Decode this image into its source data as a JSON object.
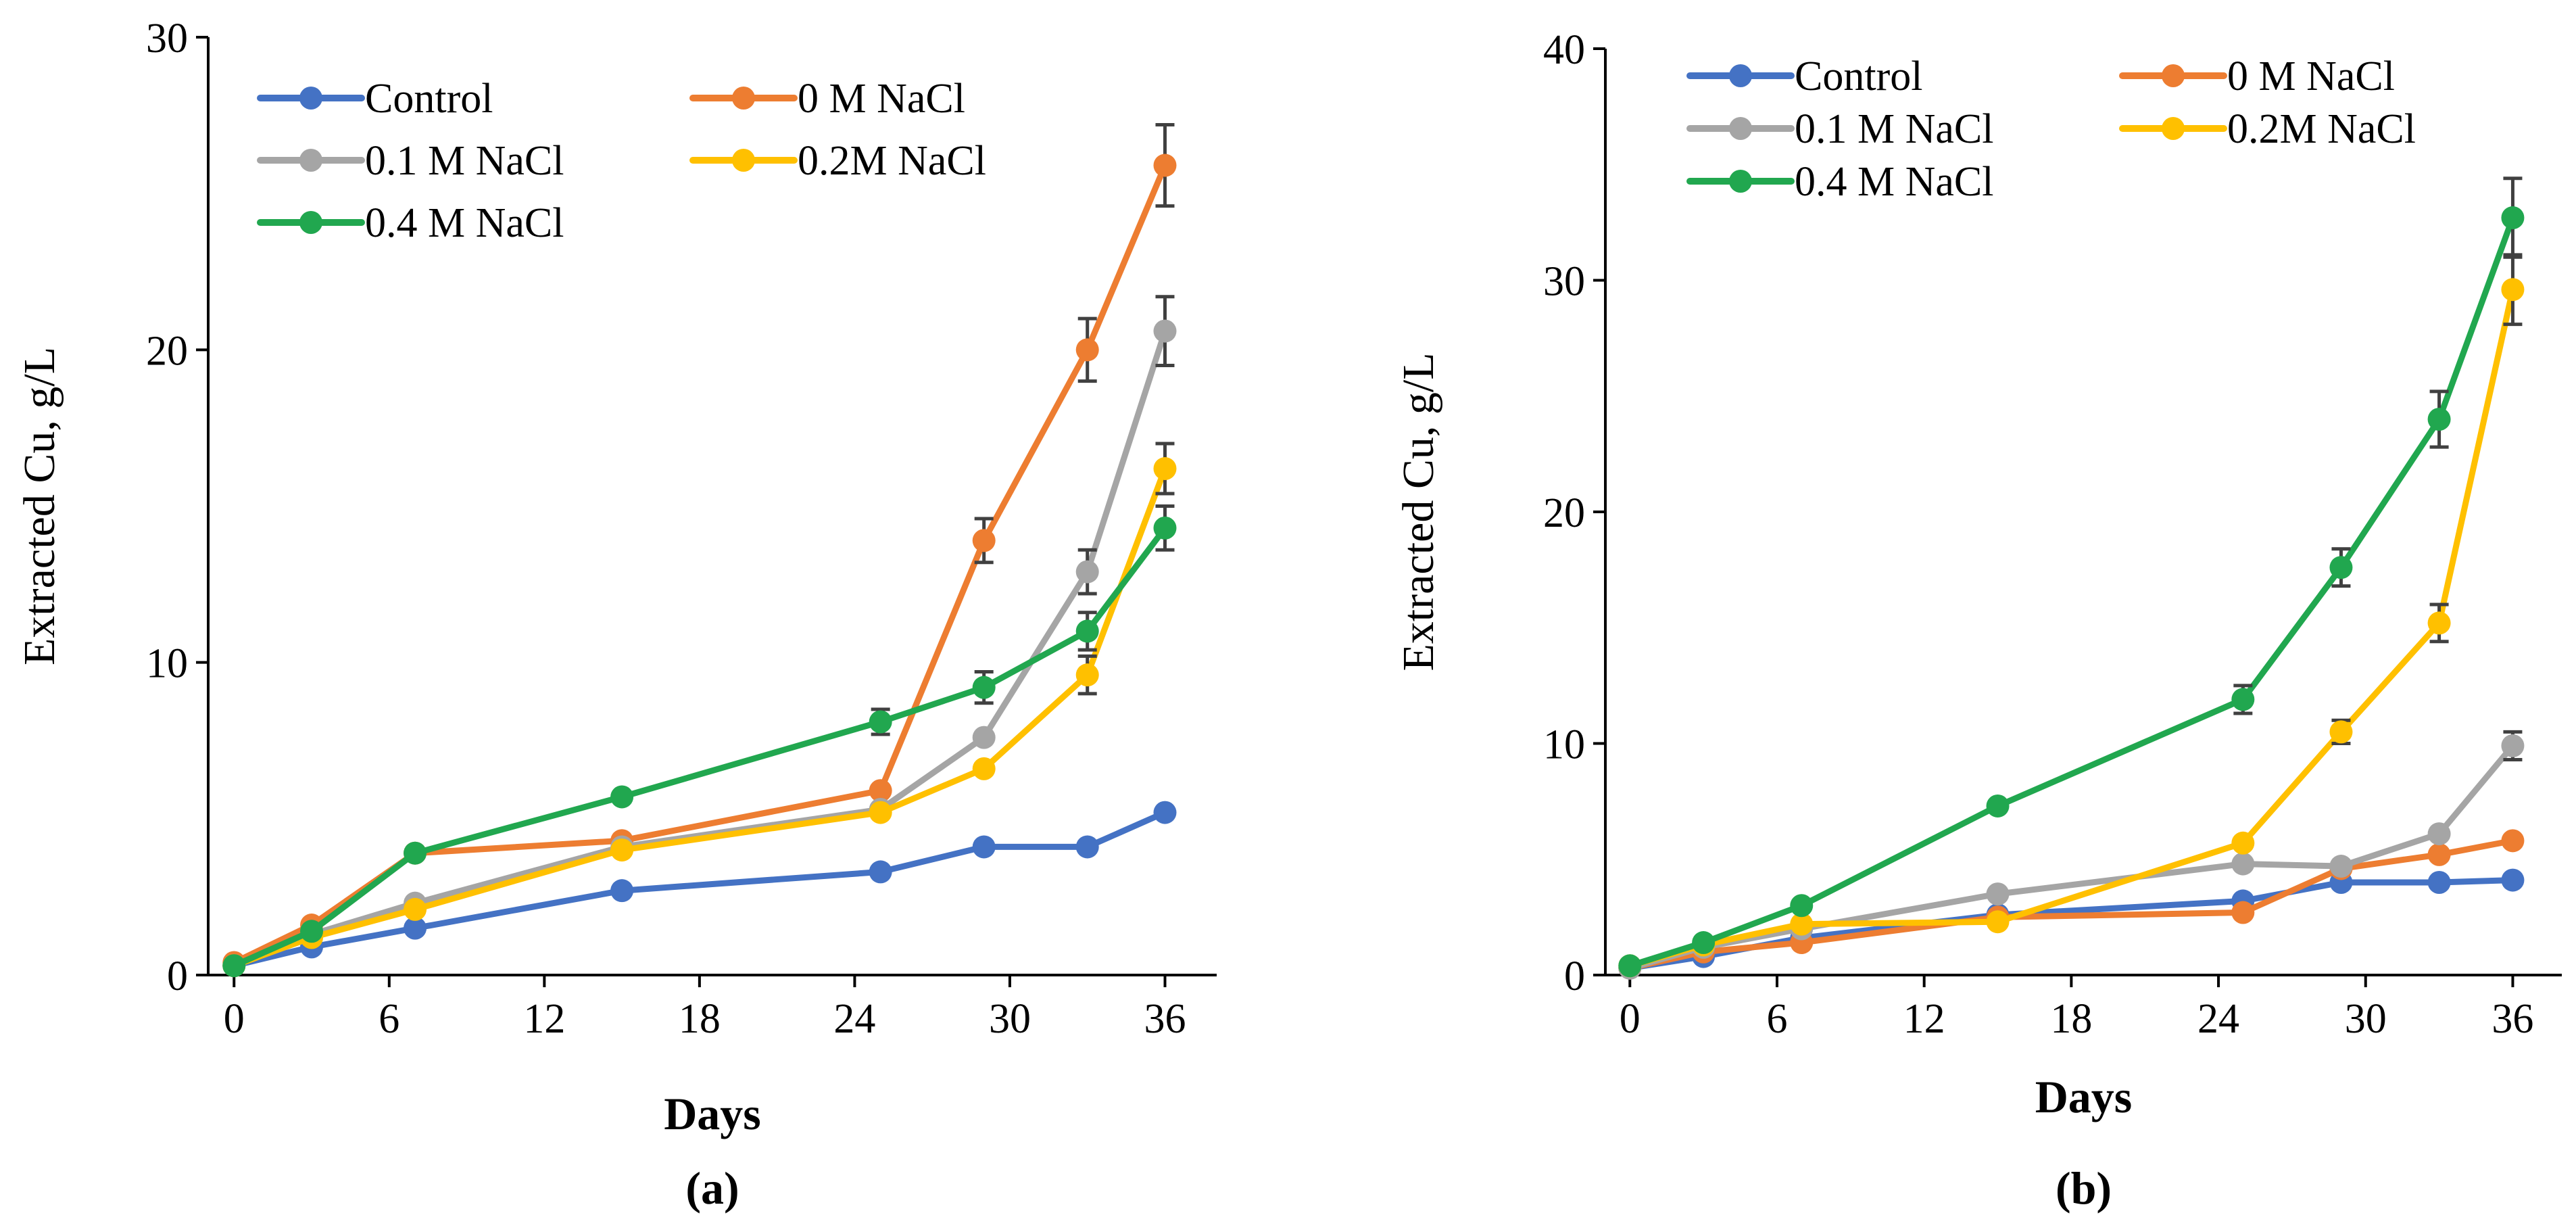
{
  "chart_data": [
    {
      "panel_label": "(a)",
      "type": "line",
      "xlabel": "Days",
      "ylabel": "Extracted Cu, g/L",
      "xlim": [
        -1,
        38
      ],
      "ylim": [
        0,
        30
      ],
      "xticks": [
        0,
        6,
        12,
        18,
        24,
        30,
        36
      ],
      "yticks": [
        0,
        10,
        20,
        30
      ],
      "x": [
        0,
        3,
        7,
        15,
        25,
        29,
        33,
        36
      ],
      "legend_cols": 2,
      "series": [
        {
          "name": "Control",
          "color": "#4472C4",
          "values": [
            0.3,
            0.9,
            1.5,
            2.7,
            3.3,
            4.1,
            4.1,
            5.2
          ],
          "errors": [
            0,
            0,
            0,
            0,
            0,
            0,
            0,
            0
          ]
        },
        {
          "name": "0 M NaCl",
          "color": "#ED7D31",
          "values": [
            0.4,
            1.6,
            3.9,
            4.3,
            5.9,
            13.9,
            20.0,
            25.9
          ],
          "errors": [
            0,
            0,
            0,
            0,
            0,
            0.7,
            1.0,
            1.3
          ]
        },
        {
          "name": "0.1 M NaCl",
          "color": "#A5A5A5",
          "values": [
            0.3,
            1.3,
            2.3,
            4.1,
            5.3,
            7.6,
            12.9,
            20.6
          ],
          "errors": [
            0,
            0,
            0,
            0,
            0,
            0,
            0.7,
            1.1
          ]
        },
        {
          "name": "0.2M NaCl",
          "color": "#FFC000",
          "values": [
            0.3,
            1.2,
            2.1,
            4.0,
            5.2,
            6.6,
            9.6,
            16.2
          ],
          "errors": [
            0,
            0,
            0,
            0,
            0,
            0,
            0.6,
            0.8
          ]
        },
        {
          "name": "0.4 M NaCl",
          "color": "#21A74F",
          "values": [
            0.3,
            1.4,
            3.9,
            5.7,
            8.1,
            9.2,
            11.0,
            14.3
          ],
          "errors": [
            0,
            0,
            0,
            0,
            0.4,
            0.5,
            0.6,
            0.7
          ]
        }
      ]
    },
    {
      "panel_label": "(b)",
      "type": "line",
      "xlabel": "Days",
      "ylabel": "Extracted Cu, g/L",
      "xlim": [
        -1,
        38
      ],
      "ylim": [
        0,
        40
      ],
      "xticks": [
        0,
        6,
        12,
        18,
        24,
        30,
        36
      ],
      "yticks": [
        0,
        10,
        20,
        30,
        40
      ],
      "x": [
        0,
        3,
        7,
        15,
        25,
        29,
        33,
        36
      ],
      "legend_cols": 2,
      "series": [
        {
          "name": "Control",
          "color": "#4472C4",
          "values": [
            0.3,
            0.8,
            1.6,
            2.6,
            3.2,
            4.0,
            4.0,
            4.1
          ],
          "errors": [
            0,
            0,
            0,
            0,
            0,
            0,
            0,
            0
          ]
        },
        {
          "name": "0 M NaCl",
          "color": "#ED7D31",
          "values": [
            0.3,
            1.0,
            1.4,
            2.5,
            2.7,
            4.6,
            5.2,
            5.8
          ],
          "errors": [
            0,
            0,
            0,
            0,
            0,
            0,
            0,
            0
          ]
        },
        {
          "name": "0.1 M NaCl",
          "color": "#A5A5A5",
          "values": [
            0.3,
            1.2,
            2.0,
            3.5,
            4.8,
            4.7,
            6.1,
            9.9
          ],
          "errors": [
            0,
            0,
            0,
            0,
            0,
            0,
            0,
            0.6
          ]
        },
        {
          "name": "0.2M NaCl",
          "color": "#FFC000",
          "values": [
            0.4,
            1.3,
            2.2,
            2.3,
            5.7,
            10.5,
            15.2,
            29.6
          ],
          "errors": [
            0,
            0,
            0,
            0,
            0,
            0.5,
            0.8,
            1.5
          ]
        },
        {
          "name": "0.4 M NaCl",
          "color": "#21A74F",
          "values": [
            0.4,
            1.4,
            3.0,
            7.3,
            11.9,
            17.6,
            24.0,
            32.7
          ],
          "errors": [
            0,
            0,
            0,
            0,
            0.6,
            0.8,
            1.2,
            1.7
          ]
        }
      ]
    }
  ]
}
